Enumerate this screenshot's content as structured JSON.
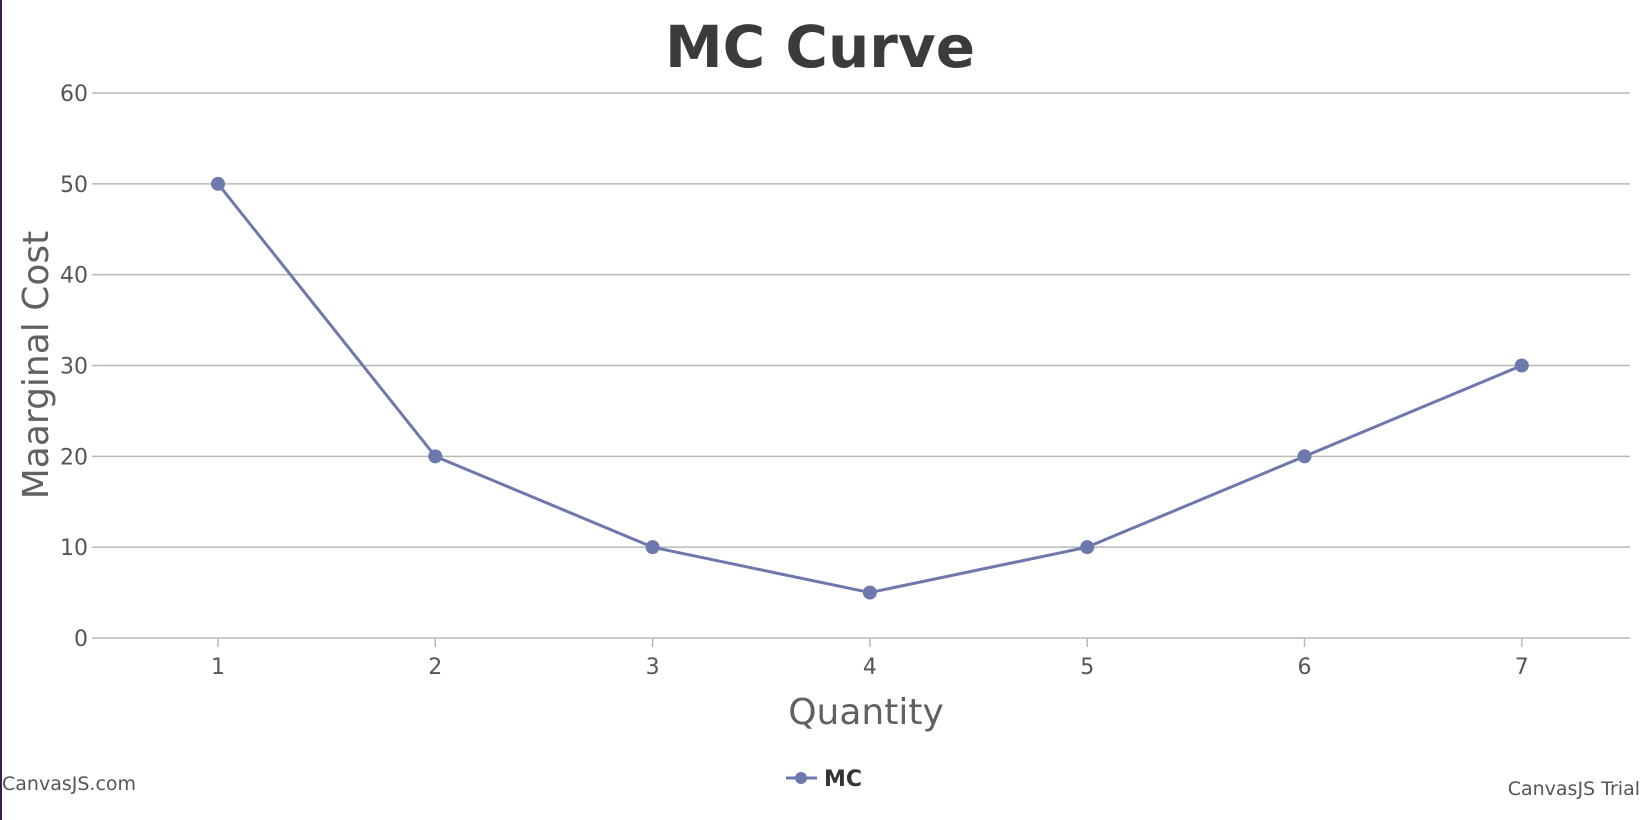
{
  "chart_data": {
    "type": "line",
    "title": "MC Curve",
    "xlabel": "Quantity",
    "ylabel": "Maarginal Cost",
    "x": [
      1,
      2,
      3,
      4,
      5,
      6,
      7
    ],
    "series": [
      {
        "name": "MC",
        "values": [
          50,
          20,
          10,
          5,
          10,
          20,
          30
        ]
      }
    ],
    "ylim": [
      0,
      60
    ],
    "yticks": [
      0,
      10,
      20,
      30,
      40,
      50,
      60
    ],
    "xticks": [
      "1",
      "2",
      "3",
      "4",
      "5",
      "6",
      "7"
    ],
    "grid": true,
    "legend": "bottom-center",
    "series_color": "#6d78ad",
    "grid_color": "#b8b8b8"
  },
  "credits": {
    "left": "CanvasJS.com",
    "right": "CanvasJS Trial"
  }
}
